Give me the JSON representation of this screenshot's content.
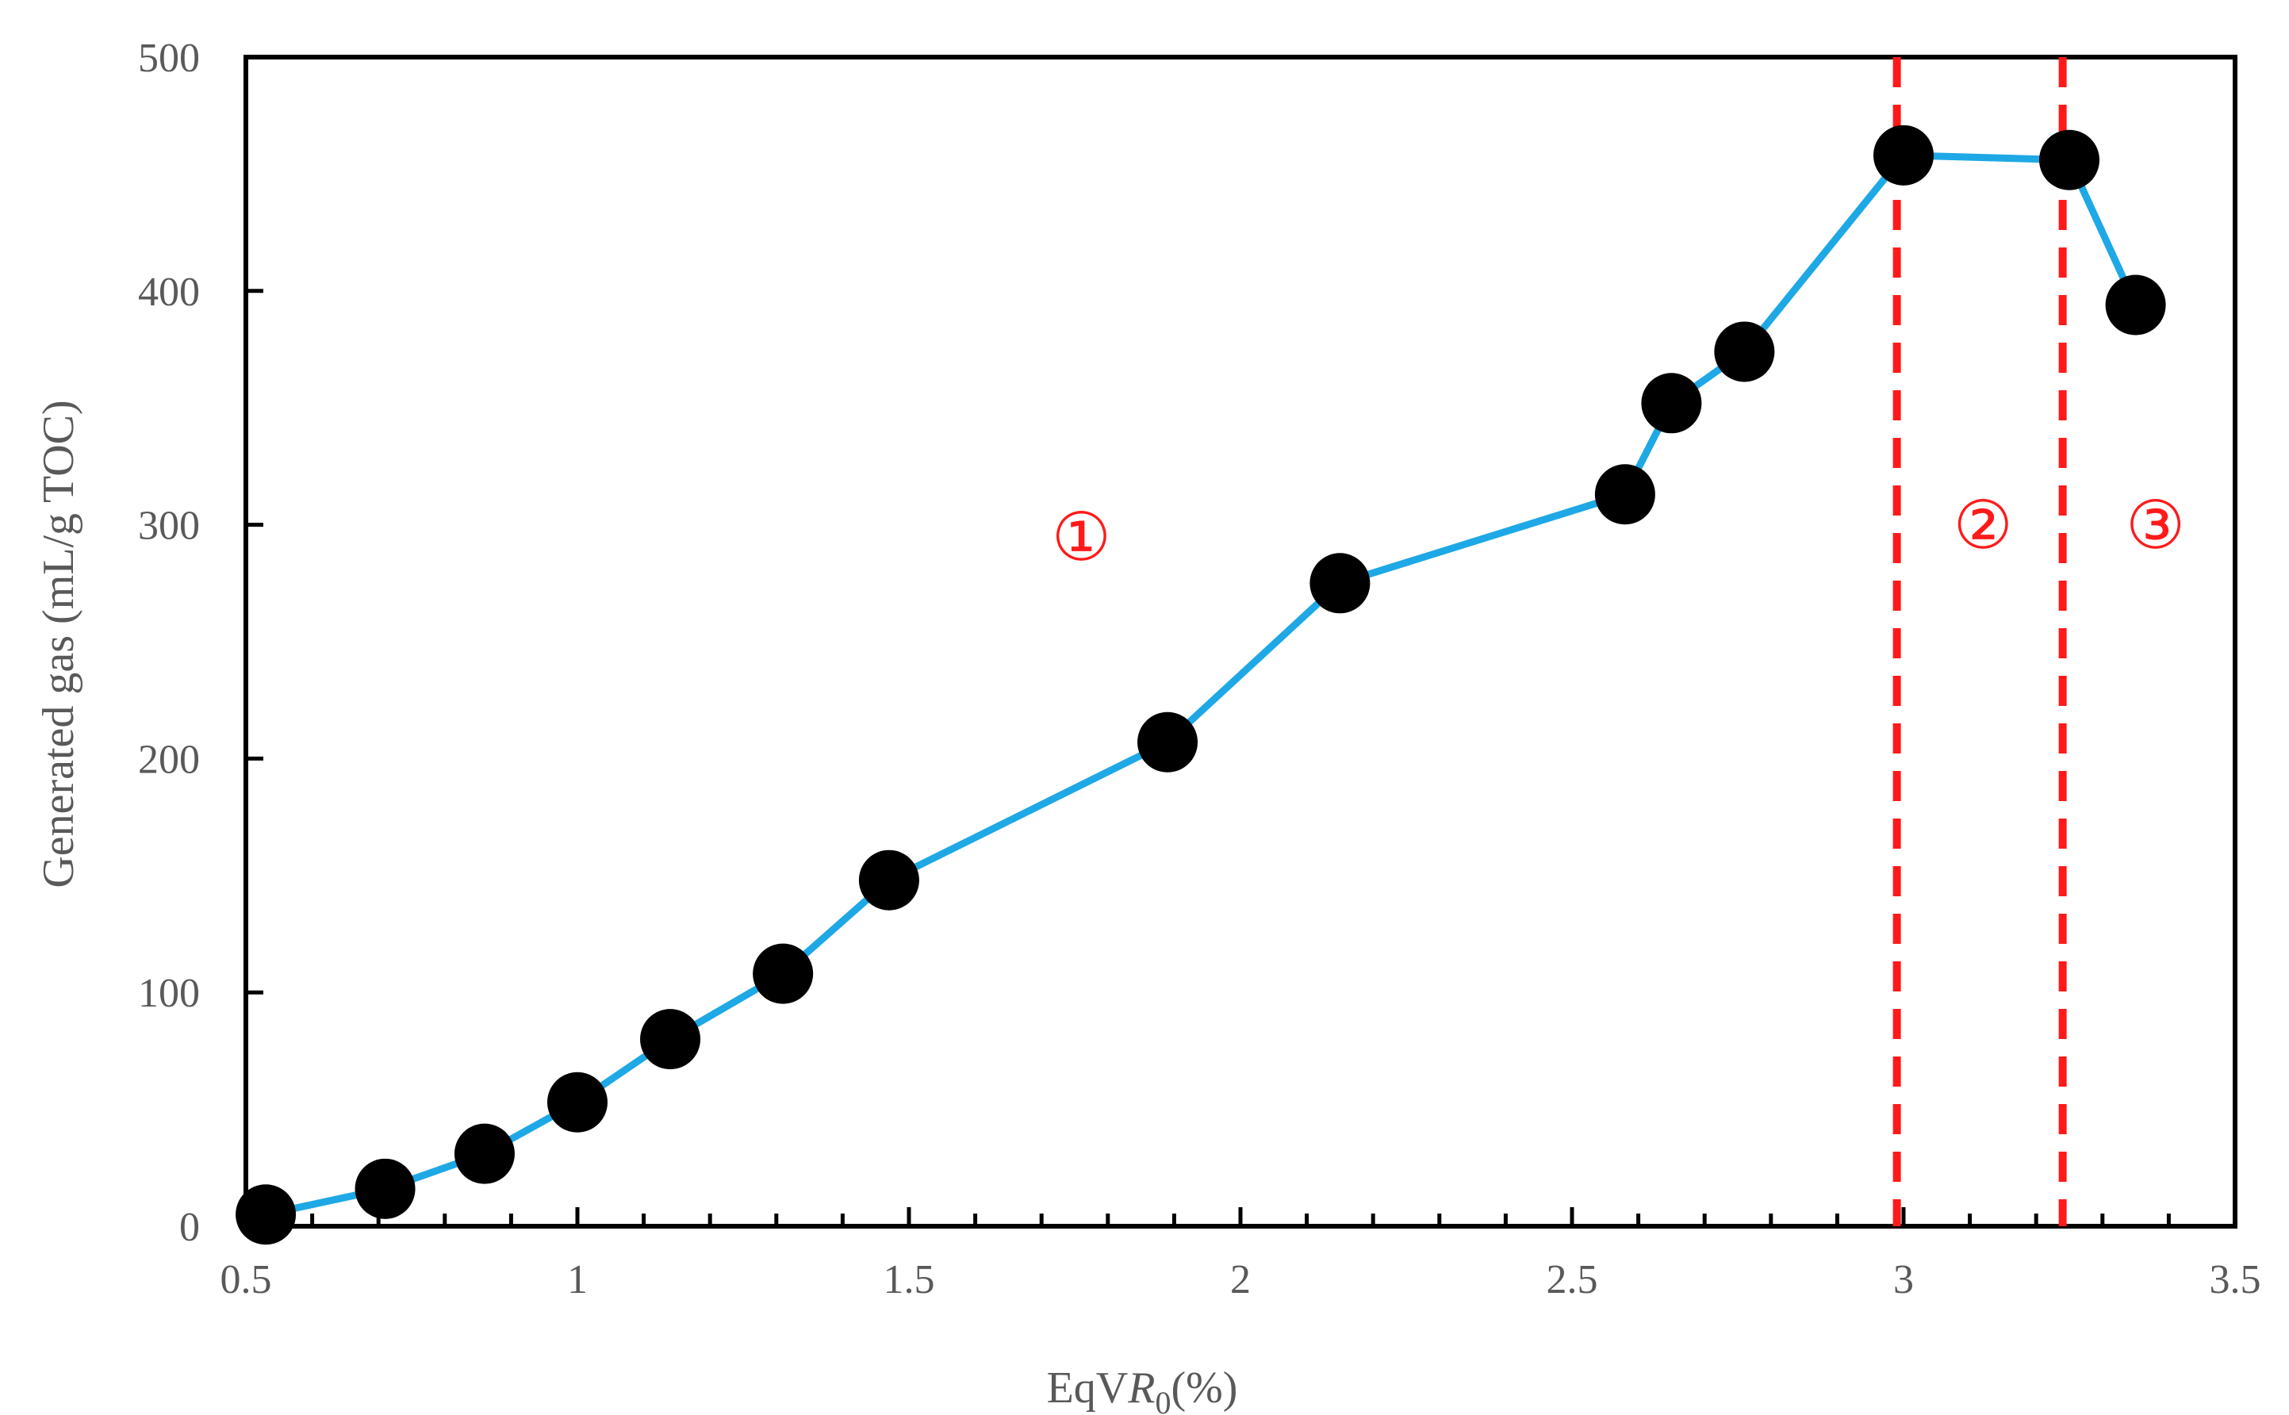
{
  "chart_data": {
    "type": "line",
    "title": "",
    "xlabel_parts": [
      "EqV",
      "R",
      "0",
      "(%)"
    ],
    "ylabel": "Generated gas (mL/g TOC)",
    "xlim": [
      0.5,
      3.5
    ],
    "ylim": [
      0,
      500
    ],
    "x_ticks": [
      "0.5",
      "1",
      "1.5",
      "2",
      "2.5",
      "3",
      "3.5"
    ],
    "y_ticks": [
      "0",
      "100",
      "200",
      "300",
      "400",
      "500"
    ],
    "x_minor_step": 0.1,
    "grid": false,
    "legend": "none",
    "series": [
      {
        "color": "#1ea8e6",
        "marker": "circle",
        "marker_color": "#000000",
        "x": [
          0.53,
          0.71,
          0.86,
          1.0,
          1.14,
          1.31,
          1.47,
          1.89,
          2.15,
          2.58,
          2.65,
          2.76,
          3.0,
          3.25,
          3.35
        ],
        "y": [
          5,
          16,
          31,
          53,
          80,
          108,
          148,
          207,
          275,
          313,
          352,
          374,
          458,
          456,
          394
        ]
      }
    ],
    "dividers": [
      {
        "x": 2.99,
        "color": "#ff1a1a",
        "style": "dashed"
      },
      {
        "x": 3.24,
        "color": "#ff1a1a",
        "style": "dashed"
      }
    ],
    "annotations": [
      {
        "text": "①",
        "x": 1.76,
        "y": 285
      },
      {
        "text": "②",
        "x": 3.12,
        "y": 290
      },
      {
        "text": "③",
        "x": 3.38,
        "y": 290
      }
    ]
  }
}
